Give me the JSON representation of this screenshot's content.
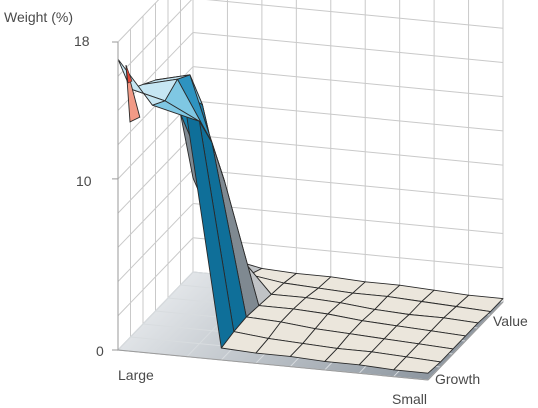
{
  "chart_data": {
    "type": "surface3d",
    "title": "",
    "zlabel": "Weight (%)",
    "zticks": [
      "18",
      "10",
      "0"
    ],
    "zlim": [
      0,
      18
    ],
    "size_labels": [
      "Large",
      "Small"
    ],
    "style_labels": [
      "Growth",
      "Value"
    ],
    "size_axis": [
      "Large",
      "",
      "",
      "",
      "",
      "",
      "",
      "",
      "",
      "Small"
    ],
    "style_axis": [
      "Growth",
      "",
      "",
      "",
      "",
      "",
      "Value"
    ],
    "z": [
      [
        17.0,
        14.5,
        14.0,
        0.7,
        0.6,
        0.6,
        0.5,
        0.5,
        0.4,
        0.4
      ],
      [
        14.5,
        14.0,
        13.0,
        0.9,
        0.7,
        0.6,
        0.5,
        0.5,
        0.4,
        0.3
      ],
      [
        14.0,
        14.5,
        11.0,
        1.0,
        0.9,
        0.7,
        0.6,
        0.5,
        0.4,
        0.3
      ],
      [
        13.5,
        14.0,
        8.0,
        0.9,
        0.9,
        0.8,
        0.6,
        0.5,
        0.4,
        0.3
      ],
      [
        12.5,
        11.5,
        3.0,
        0.8,
        0.8,
        0.7,
        0.5,
        0.4,
        0.4,
        0.3
      ],
      [
        10.0,
        5.5,
        1.0,
        0.7,
        0.6,
        0.5,
        0.5,
        0.4,
        0.3,
        0.2
      ],
      [
        5.5,
        1.0,
        0.6,
        0.5,
        0.5,
        0.4,
        0.4,
        0.3,
        0.2,
        0.2
      ]
    ],
    "color_bands": [
      {
        "from": 0,
        "to": 2,
        "color": "#ebe6dc"
      },
      {
        "from": 2,
        "to": 4,
        "color": "#c0c3c6"
      },
      {
        "from": 4,
        "to": 6,
        "color": "#7f8991"
      },
      {
        "from": 6,
        "to": 8,
        "color": "#0f6f99"
      },
      {
        "from": 8,
        "to": 10,
        "color": "#1a80ad"
      },
      {
        "from": 10,
        "to": 12,
        "color": "#2e93c0"
      },
      {
        "from": 12,
        "to": 14,
        "color": "#7fc7e3"
      },
      {
        "from": 14,
        "to": 16,
        "color": "#c6e6f3"
      },
      {
        "from": 16,
        "to": 18,
        "color": "#f29a86"
      }
    ],
    "peak_color": "#e04535"
  }
}
